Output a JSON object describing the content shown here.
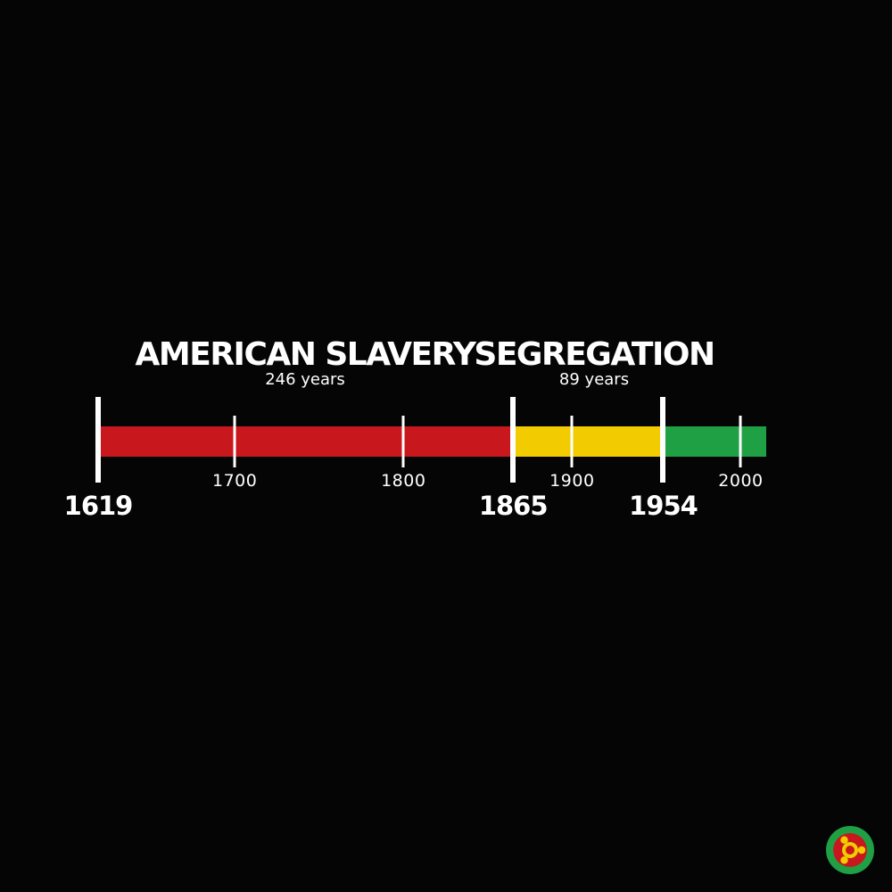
{
  "periods": [
    {
      "title": "AMERICAN SLAVERY",
      "duration": "246 years",
      "start": 1619,
      "end": 1865,
      "color": "#c8181d"
    },
    {
      "title": "SEGREGATION",
      "duration": "89 years",
      "start": 1865,
      "end": 1954,
      "color": "#f2cc00"
    },
    {
      "title": "",
      "duration": "",
      "start": 1954,
      "end": 2015,
      "color": "#1fa045"
    }
  ],
  "major_labels": [
    "1619",
    "1865",
    "1954"
  ],
  "minor_labels": [
    "1700",
    "1800",
    "1900",
    "2000"
  ],
  "logo": {
    "icon": "ubuntu-style-circle-logo",
    "ring_color": "#1fa045",
    "inner_color": "#c8181d",
    "mark_color": "#f2cc00"
  }
}
